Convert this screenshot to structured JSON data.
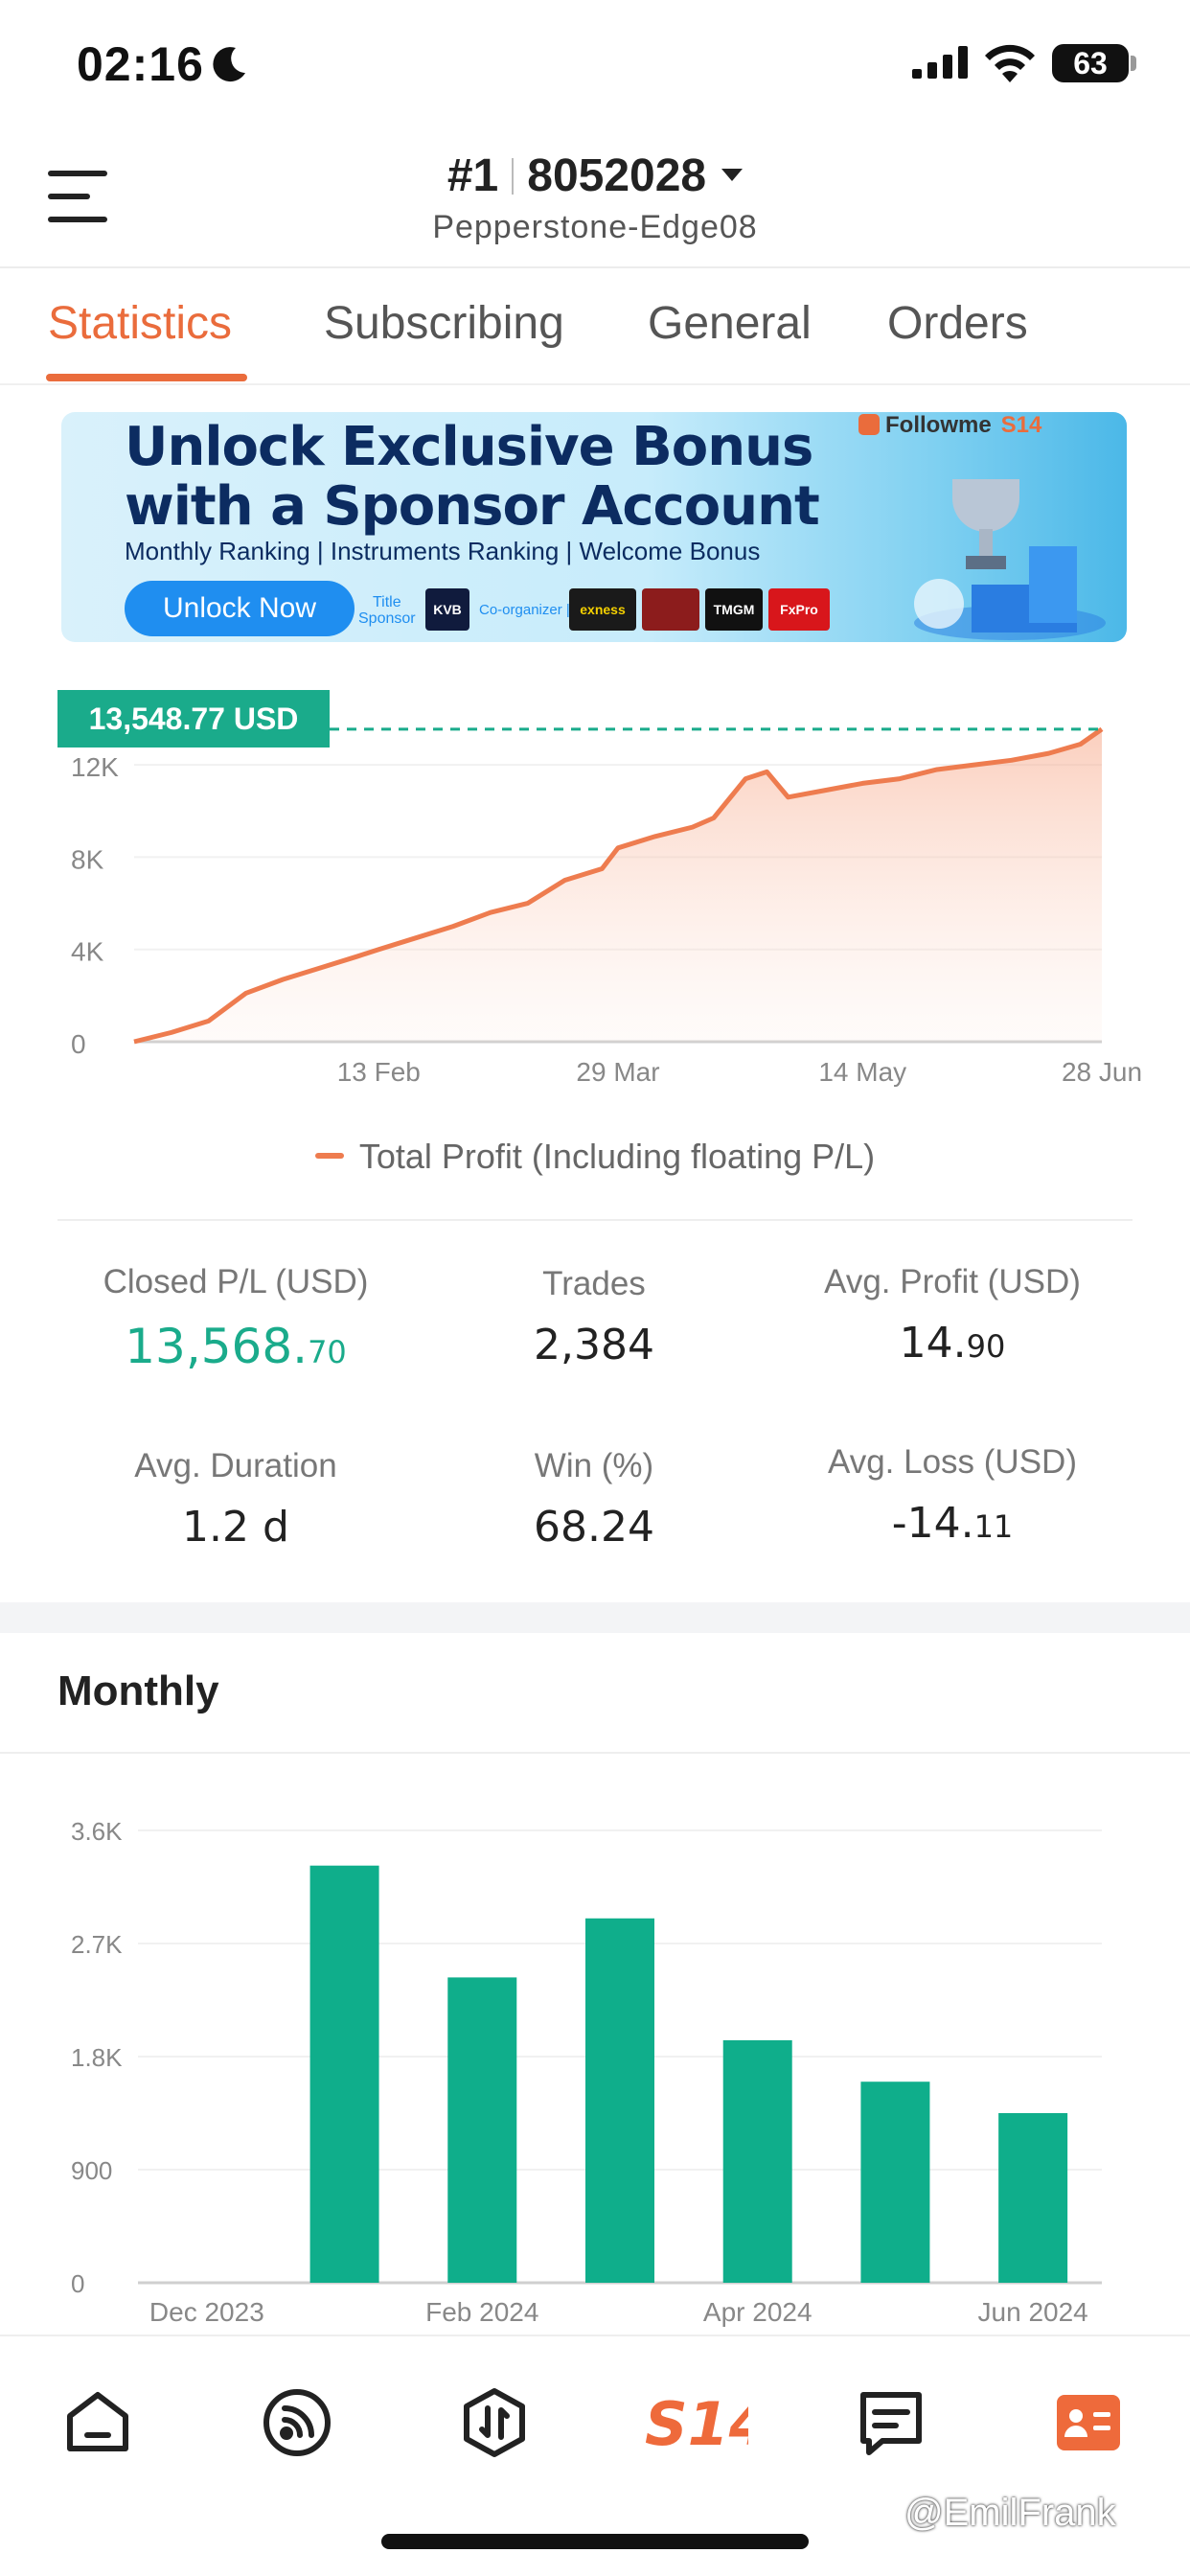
{
  "status_bar": {
    "time": "02:16",
    "battery": "63"
  },
  "header": {
    "rank": "#1",
    "account_id": "8052028",
    "server": "Pepperstone-Edge08"
  },
  "tabs": [
    {
      "label": "Statistics",
      "active": true
    },
    {
      "label": "Subscribing",
      "active": false
    },
    {
      "label": "General",
      "active": false
    },
    {
      "label": "Orders",
      "active": false
    }
  ],
  "banner": {
    "headline_1": "Unlock Exclusive Bonus",
    "headline_2": "with a Sponsor Account",
    "subline": "Monthly Ranking | Instruments Ranking | Welcome Bonus",
    "button_label": "Unlock Now",
    "brand": "Followme",
    "brand_badge": "S14",
    "title_sponsor_label_1": "Title",
    "title_sponsor_label_2": "Sponsor",
    "title_sponsor": "KVB",
    "co_organizer_label": "Co-organizer |",
    "co_organizers": [
      "exness",
      "",
      "TMGM",
      "FxPro"
    ]
  },
  "profit_chart": {
    "current_value_label": "13,548.77 USD",
    "legend": "Total Profit (Including floating P/L)"
  },
  "stats": {
    "closed_pl_label": "Closed P/L (USD)",
    "closed_pl_int": "13,568.",
    "closed_pl_dec": "70",
    "trades_label": "Trades",
    "trades_value": "2,384",
    "avg_profit_label": "Avg. Profit (USD)",
    "avg_profit_int": "14.",
    "avg_profit_dec": "90",
    "avg_duration_label": "Avg. Duration",
    "avg_duration_value": "1.2 d",
    "win_label": "Win (%)",
    "win_value": "68.24",
    "avg_loss_label": "Avg. Loss (USD)",
    "avg_loss_int": "-14.",
    "avg_loss_dec": "11"
  },
  "monthly": {
    "title": "Monthly"
  },
  "nav": [
    "home-icon",
    "feed-icon",
    "trade-icon",
    "s14-logo",
    "messages-icon",
    "profile-card-icon"
  ],
  "nav_logo_text": "S14",
  "watermark": "@EmilFrank",
  "colors": {
    "accent": "#ea6c3c",
    "green": "#1aab8b",
    "bar": "#0fae8b"
  },
  "chart_data": [
    {
      "type": "area",
      "title": "",
      "series": [
        {
          "name": "Total Profit (Including floating P/L)",
          "x": [
            "2023-12-29",
            "2024-01-05",
            "2024-01-12",
            "2024-01-19",
            "2024-01-26",
            "2024-02-02",
            "2024-02-09",
            "2024-02-13",
            "2024-02-20",
            "2024-02-27",
            "2024-03-05",
            "2024-03-12",
            "2024-03-19",
            "2024-03-26",
            "2024-03-29",
            "2024-04-05",
            "2024-04-12",
            "2024-04-16",
            "2024-04-22",
            "2024-04-26",
            "2024-04-30",
            "2024-05-07",
            "2024-05-14",
            "2024-05-21",
            "2024-05-28",
            "2024-06-04",
            "2024-06-11",
            "2024-06-18",
            "2024-06-24",
            "2024-06-28"
          ],
          "values": [
            0,
            400,
            900,
            2100,
            2700,
            3200,
            3700,
            4000,
            4500,
            5000,
            5600,
            6000,
            7000,
            7500,
            8400,
            8900,
            9300,
            9700,
            11400,
            11700,
            10600,
            10900,
            11200,
            11400,
            11800,
            12000,
            12200,
            12500,
            12900,
            13548.77
          ]
        }
      ],
      "x_tick_labels": [
        "13 Feb",
        "29 Mar",
        "14 May",
        "28 Jun"
      ],
      "y_ticks": [
        0,
        4000,
        8000,
        12000
      ],
      "y_tick_labels": [
        "0",
        "4K",
        "8K",
        "12K"
      ],
      "ylim": [
        0,
        14000
      ],
      "grid": true,
      "legend": "bottom"
    },
    {
      "type": "bar",
      "title": "Monthly",
      "categories": [
        "Dec 2023",
        "Jan 2024",
        "Feb 2024",
        "Mar 2024",
        "Apr 2024",
        "May 2024",
        "Jun 2024"
      ],
      "x_tick_labels": [
        "Dec 2023",
        "Feb 2024",
        "Apr 2024",
        "Jun 2024"
      ],
      "values": [
        0,
        3320,
        2430,
        2900,
        1930,
        1600,
        1350
      ],
      "y_ticks": [
        0,
        900,
        1800,
        2700,
        3600
      ],
      "y_tick_labels": [
        "0",
        "900",
        "1.8K",
        "2.7K",
        "3.6K"
      ],
      "ylim": [
        0,
        3600
      ],
      "grid": true
    }
  ]
}
